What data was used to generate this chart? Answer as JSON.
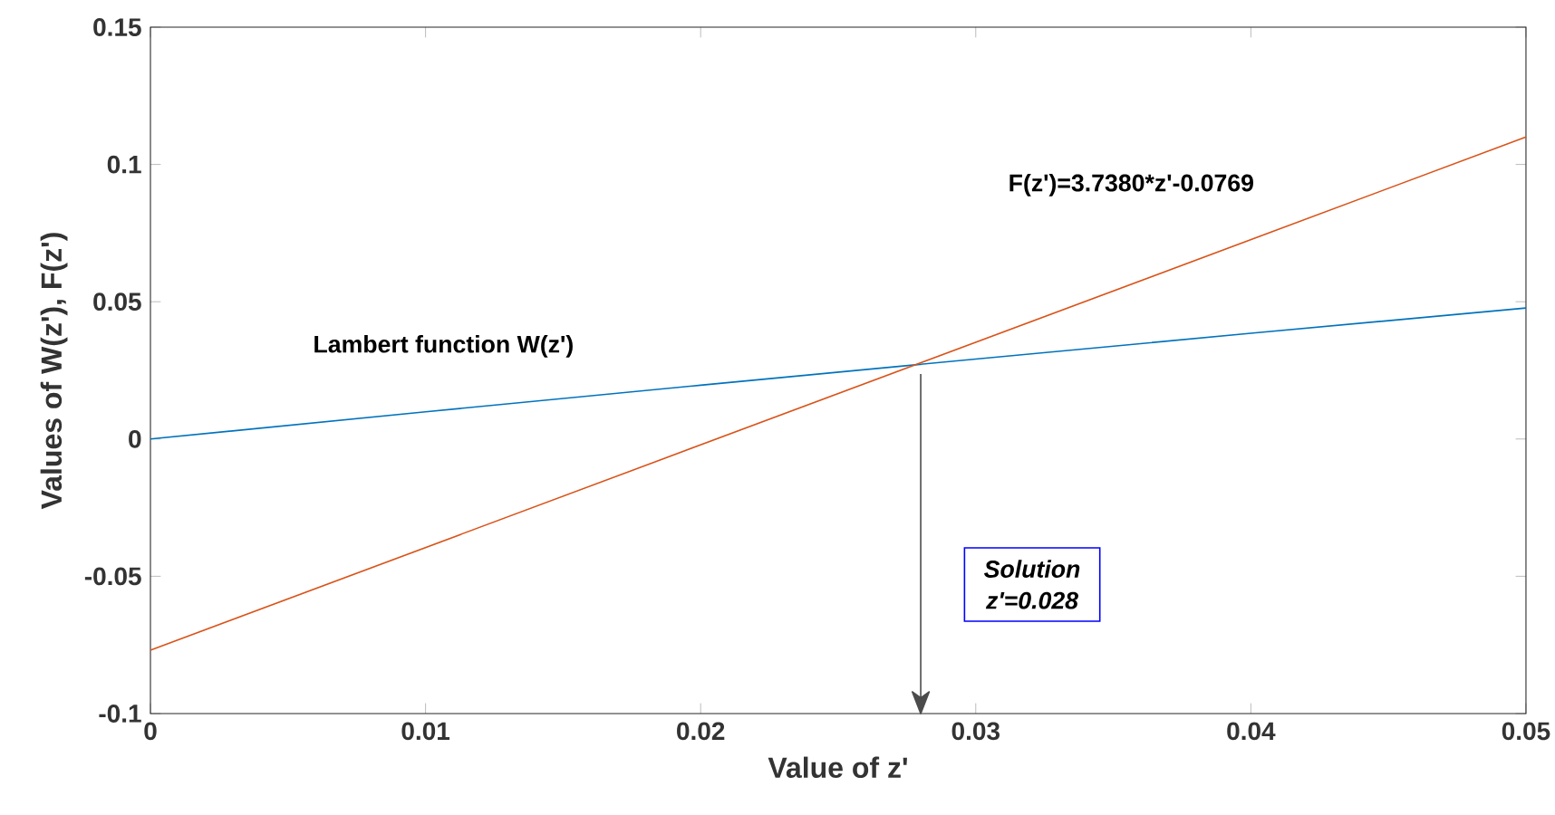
{
  "chart_data": {
    "type": "line",
    "xlabel": "Value of z'",
    "ylabel": "Values of W(z'), F(z')",
    "xlim": [
      0,
      0.05
    ],
    "xticks": [
      0,
      0.01,
      0.02,
      0.03,
      0.04,
      0.05
    ],
    "ylim": [
      -0.1,
      0.15
    ],
    "yticks": [
      -0.1,
      -0.05,
      0,
      0.05,
      0.1,
      0.15
    ],
    "series": [
      {
        "name": "Lambert function W(z')",
        "color": "#0072bd",
        "x": [
          0,
          0.01,
          0.02,
          0.03,
          0.04,
          0.05
        ],
        "values": [
          0,
          0.0099,
          0.0196,
          0.0291,
          0.0385,
          0.0477
        ]
      },
      {
        "name": "F(z')=3.7380*z'-0.0769",
        "color": "#d95319",
        "x": [
          0,
          0.05
        ],
        "values": [
          -0.0769,
          0.11
        ]
      }
    ],
    "annotations": [
      "Solution z'=0.028"
    ],
    "ref_lines": [
      {
        "axis": "x",
        "value": 0.028,
        "color": "#4c4c4c"
      }
    ],
    "grid": false,
    "legend": false,
    "marker": "none",
    "line_style": "solid"
  }
}
